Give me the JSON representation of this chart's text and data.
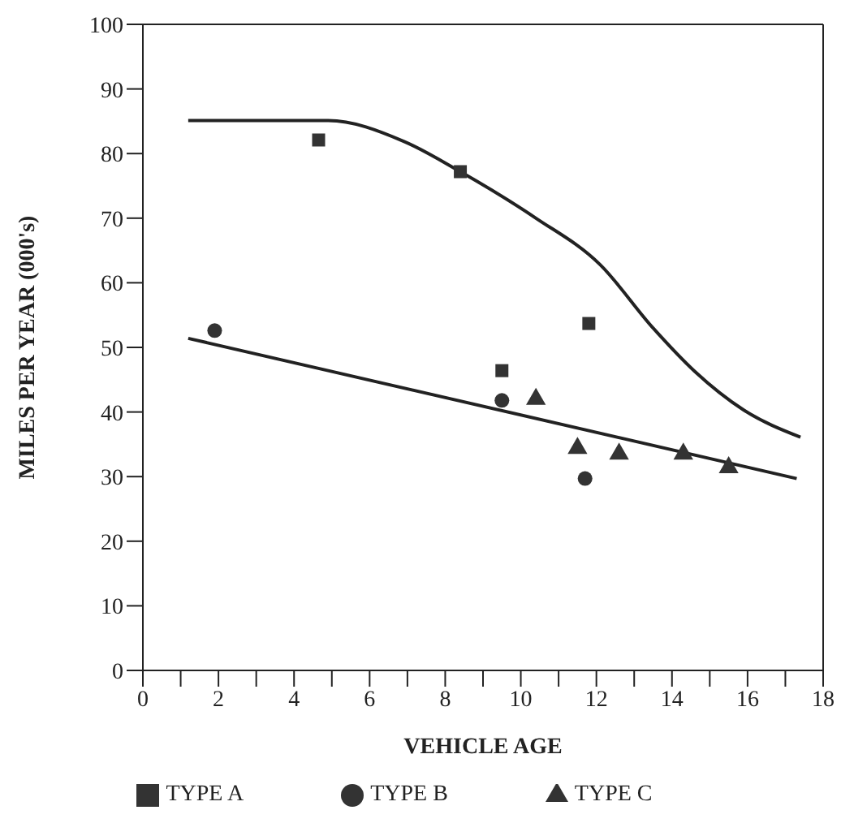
{
  "chart_data": {
    "type": "scatter",
    "xlabel": "VEHICLE AGE",
    "ylabel": "MILES PER YEAR  (000's)",
    "xlim": [
      0,
      18
    ],
    "xticks": [
      0,
      {
        "value": 1,
        "label": null
      },
      2,
      {
        "value": 3,
        "label": null
      },
      4,
      {
        "value": 5,
        "label": null
      },
      6,
      {
        "value": 7,
        "label": null
      },
      8,
      {
        "value": 9,
        "label": null
      },
      10,
      {
        "value": 11,
        "label": null
      },
      12,
      {
        "value": 13,
        "label": null
      },
      14,
      {
        "value": 15,
        "label": null
      },
      16,
      {
        "value": 17,
        "label": null
      },
      18
    ],
    "ylim": [
      0,
      100
    ],
    "yticks": [
      0,
      10,
      20,
      30,
      40,
      50,
      60,
      70,
      80,
      90,
      100
    ],
    "grid": false,
    "legend": "bottom",
    "series": [
      {
        "name": "TYPE A",
        "color": "#333333",
        "marker": "square",
        "x": [
          4.65,
          8.4,
          11.8,
          9.5
        ],
        "values": [
          82.1,
          77.2,
          53.7,
          46.4
        ]
      },
      {
        "name": "TYPE B",
        "color": "#333333",
        "marker": "circle",
        "x": [
          1.9,
          9.5,
          11.7
        ],
        "values": [
          52.6,
          41.8,
          29.7
        ]
      },
      {
        "name": "TYPE C",
        "color": "#333333",
        "marker": "triangle",
        "x": [
          10.4,
          11.5,
          12.6,
          14.3,
          15.5
        ],
        "values": [
          42,
          34.4,
          33.5,
          33.5,
          31.4
        ]
      },
      {
        "type": "line",
        "color": "#222222",
        "marker": "none",
        "x": [
          1.2,
          4.9,
          6.9,
          8.4,
          10.4,
          12.1,
          13.5,
          14.6,
          15.9,
          17.4
        ],
        "values": [
          85.1,
          85.1,
          81.9,
          77.2,
          70,
          62.8,
          53,
          46.3,
          40.3,
          36.1
        ]
      },
      {
        "type": "line",
        "color": "#222222",
        "marker": "none",
        "x": [
          1.2,
          17.3
        ],
        "values": [
          51.4,
          29.7
        ]
      }
    ]
  }
}
